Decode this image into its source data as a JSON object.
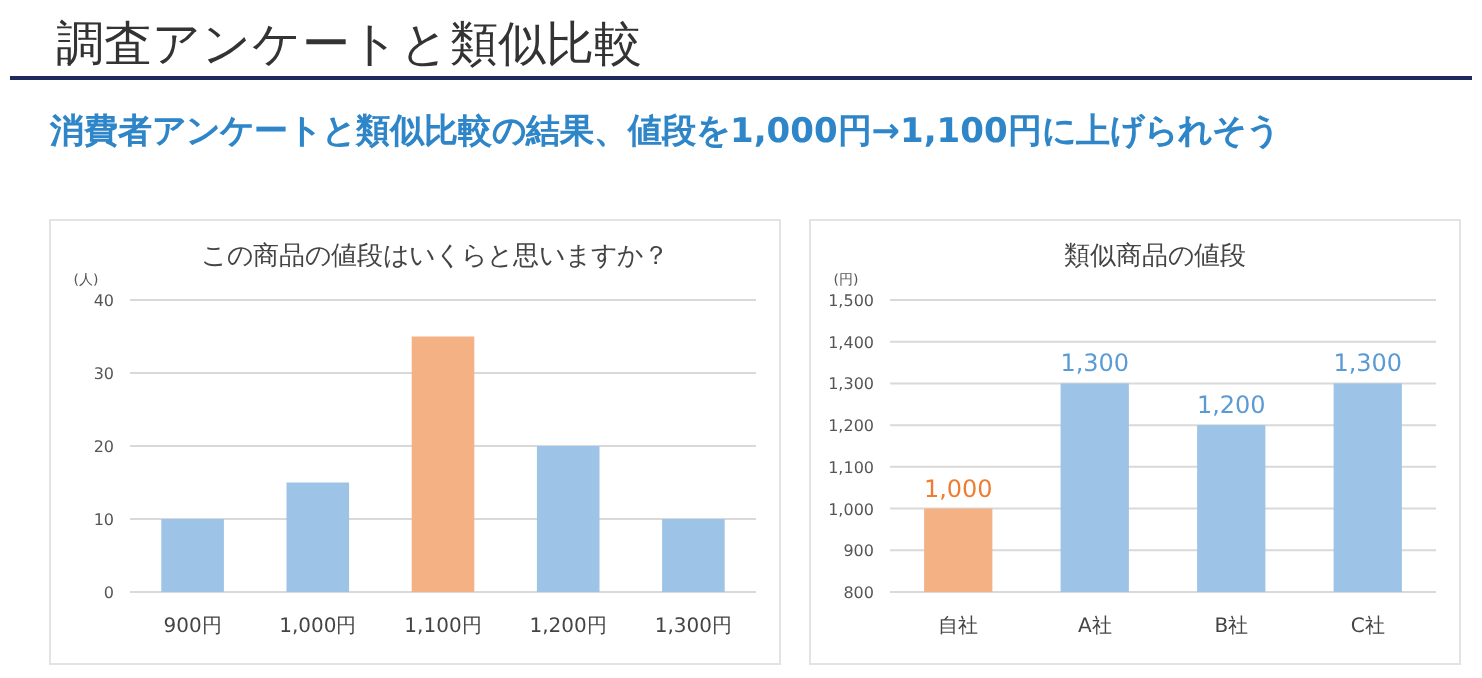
{
  "chart_data": [
    {
      "type": "other",
      "title": "調査アンケートと類似比較",
      "subtitle": "消費者アンケートと類似比較の結果、値段を1,000円→1,100円に上げられそう"
    },
    {
      "type": "bar",
      "title": "この商品の値段はいくらと思いますか？",
      "ylabel": "(人)",
      "categories": [
        "900円",
        "1,000円",
        "1,100円",
        "1,200円",
        "1,300円"
      ],
      "values": [
        10,
        15,
        35,
        20,
        10
      ],
      "colors": [
        "#9dc3e6",
        "#9dc3e6",
        "#f4b183",
        "#9dc3e6",
        "#9dc3e6"
      ],
      "ylim": [
        0,
        40
      ],
      "yticks": [
        0,
        10,
        20,
        30,
        40
      ],
      "grid": "y"
    },
    {
      "type": "bar",
      "title": "類似商品の値段",
      "ylabel": "(円)",
      "categories": [
        "自社",
        "A社",
        "B社",
        "C社"
      ],
      "values": [
        1000,
        1300,
        1200,
        1300
      ],
      "colors": [
        "#f4b183",
        "#9dc3e6",
        "#9dc3e6",
        "#9dc3e6"
      ],
      "value_labels": [
        "1,000",
        "1,300",
        "1,200",
        "1,300"
      ],
      "ylim": [
        800,
        1500
      ],
      "yticks": [
        {
          "value": 800,
          "label": "800"
        },
        {
          "value": 900,
          "label": "900"
        },
        {
          "value": 1000,
          "label": "1,000"
        },
        {
          "value": 1100,
          "label": "1,100"
        },
        {
          "value": 1200,
          "label": "1,200"
        },
        {
          "value": 1300,
          "label": "1,300"
        },
        {
          "value": 1400,
          "label": "1,400"
        },
        {
          "value": 1500,
          "label": "1,500"
        }
      ],
      "grid": "y"
    }
  ]
}
